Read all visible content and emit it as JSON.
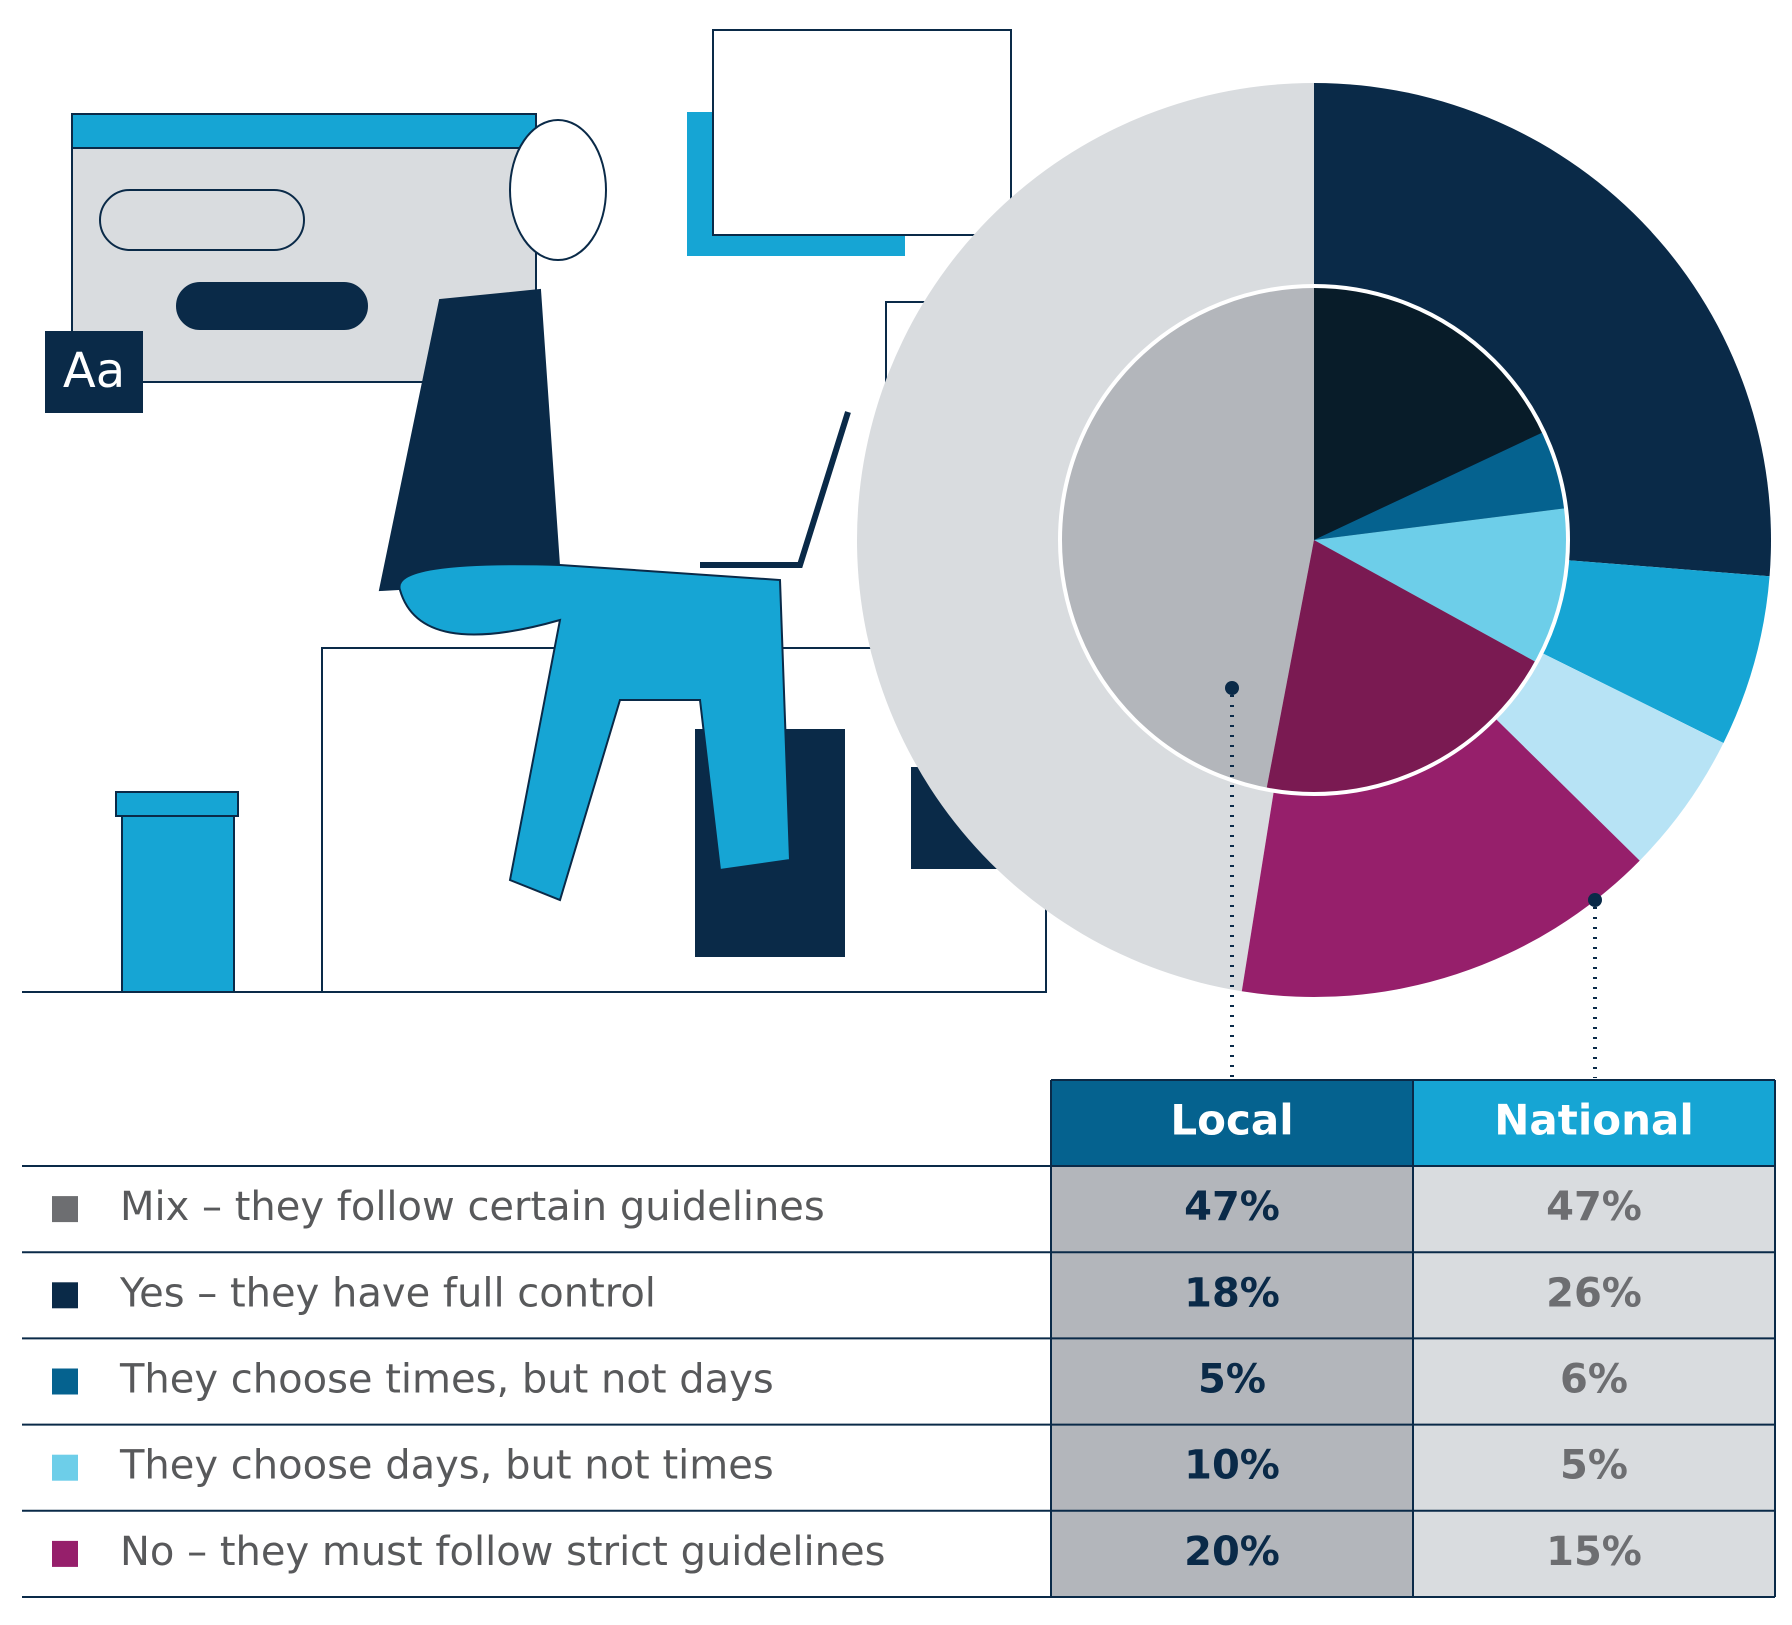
{
  "chart_data": {
    "type": "pie",
    "categories": [
      "Mix – they follow certain guidelines",
      "Yes – they have full control",
      "They choose times, but not days",
      "They choose days, but not times",
      "No – they must follow strict guidelines"
    ],
    "legend_colors": [
      "#6d6e71",
      "#0a2a48",
      "#05628f",
      "#6dcee9",
      "#961f6b"
    ],
    "series": [
      {
        "name": "Local",
        "values": [
          47,
          18,
          5,
          10,
          20
        ],
        "value_labels": [
          "47%",
          "18%",
          "5%",
          "10%",
          "20%"
        ],
        "colors": [
          "#b3b6bb",
          "#081c29",
          "#05628f",
          "#6dcee9",
          "#7a1a52"
        ]
      },
      {
        "name": "National",
        "values": [
          47,
          26,
          6,
          5,
          15
        ],
        "value_labels": [
          "47%",
          "26%",
          "6%",
          "5%",
          "15%"
        ],
        "colors": [
          "#d9dcdf",
          "#0a2a48",
          "#16a5d4",
          "#b7e3f5",
          "#961f6b"
        ]
      }
    ]
  }
}
